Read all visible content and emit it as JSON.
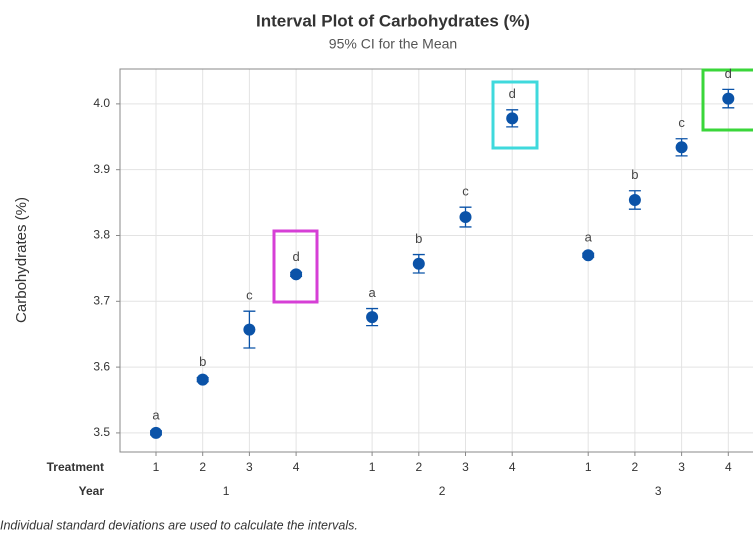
{
  "chart_data": {
    "type": "interval",
    "title": "Interval Plot of Carbohydrates (%)",
    "subtitle": "95% CI for the Mean",
    "y_label": "Carbohydrates (%)",
    "category_label": "Treatment",
    "group_label": "Year",
    "categories": [
      "1",
      "2",
      "3",
      "4",
      "1",
      "2",
      "3",
      "4",
      "1",
      "2",
      "3",
      "4"
    ],
    "groups": [
      "1",
      "2",
      "3"
    ],
    "values": [
      3.5,
      3.581,
      3.657,
      3.741,
      3.676,
      3.757,
      3.828,
      3.978,
      3.77,
      3.854,
      3.934,
      4.008
    ],
    "errors": [
      0.003,
      0.003,
      0.028,
      0.003,
      0.013,
      0.014,
      0.015,
      0.013,
      0.003,
      0.014,
      0.013,
      0.014
    ],
    "letters": [
      "a",
      "b",
      "c",
      "d",
      "a",
      "b",
      "c",
      "d",
      "a",
      "b",
      "c",
      "d"
    ],
    "color": "#0b53a8",
    "ylim": [
      3.471,
      4.053
    ],
    "yticks": [
      {
        "value": 3.5,
        "label": "3.5"
      },
      {
        "value": 3.6,
        "label": "3.6"
      },
      {
        "value": 3.7,
        "label": "3.7"
      },
      {
        "value": 3.8,
        "label": "3.8"
      },
      {
        "value": 3.9,
        "label": "3.9"
      },
      {
        "value": 4.0,
        "label": "4.0"
      }
    ],
    "grid": true,
    "footnote": "Individual standard deviations are used to calculate the intervals."
  }
}
